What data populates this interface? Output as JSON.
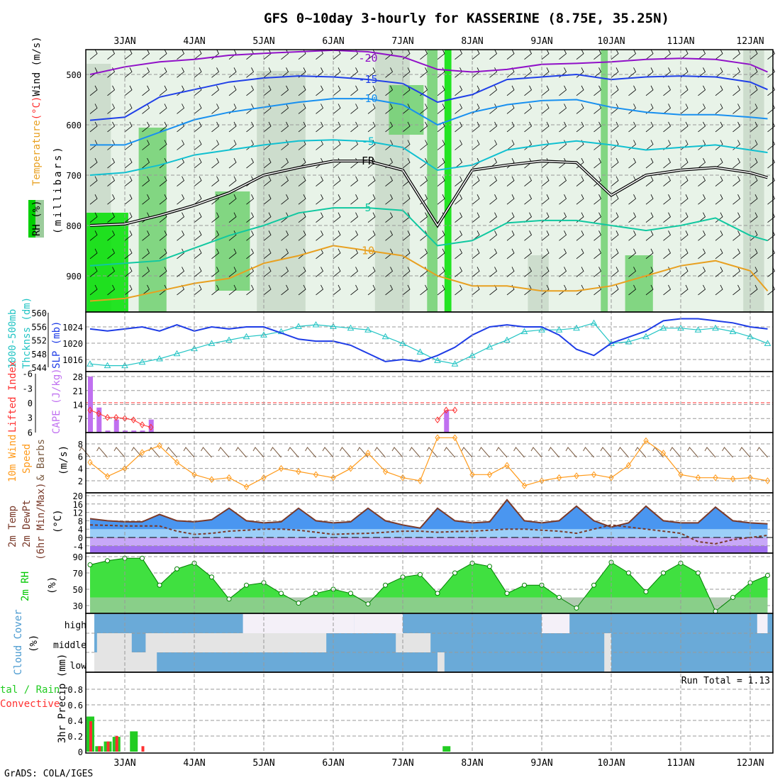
{
  "title": "GFS 0~10day 3-hourly for KASSERINE (8.75E, 35.25N)",
  "footer": "GrADS: COLA/IGES",
  "run_total": "Run Total = 1.13",
  "dates": [
    "3JAN",
    "4JAN",
    "5JAN",
    "6JAN",
    "7JAN",
    "8JAN",
    "9JAN",
    "10JAN",
    "11JAN",
    "12JAN"
  ],
  "colors": {
    "thickness": "#22c4c4",
    "slp": "#1e3ce6",
    "cape": "#c070f0",
    "li": "#ff3030",
    "wind": "#ff9a1a",
    "barb": "#7a5a40",
    "temp": "#7a3a2a",
    "rh": "#00c800",
    "cloud": "#6aaad8",
    "rain": "#22cc22",
    "conv": "#ff3030"
  },
  "labels": {
    "wind_ms": "Wind (m/s)",
    "deg_c": "(°C)",
    "temperature": "Temperature",
    "millibars": "(millibars)",
    "rh_pct": "RH (%)",
    "thickness": "1000-500mb",
    "thickness2": "Thcknss (dm)",
    "slp": "SLP (mb)",
    "lifted_index": "Lifted Index",
    "cape": "CAPE (J/kg)",
    "wind10": "10m Wind",
    "speed": "Speed",
    "barbs": "& Barbs",
    "ms": "(m/s)",
    "temp2m": "2m Temp",
    "dewpt2m": "2m DewPt",
    "minmax": "(6hr Min/Max)",
    "degc2": "(°C)",
    "rh2m": "2m RH",
    "pct": "(%)",
    "cloud_cover": "Cloud Cover",
    "cloud_pct": "(%)",
    "high": "high",
    "middle": "middle",
    "low": "low",
    "total_rain": "tal / Rain",
    "convective": "Convective",
    "precip": "3hr Precip (mm)"
  },
  "chart_data": [
    {
      "type": "contour",
      "title": "Temperature (°C), Wind (m/s), RH (%) vs pressure",
      "ylabel": "(millibars)",
      "yticks": [
        500,
        600,
        700,
        800,
        900
      ],
      "ylim": [
        950,
        450
      ],
      "x_days_from_3JAN": [
        -0.5,
        0,
        0.5,
        1,
        1.5,
        2,
        2.5,
        3,
        3.5,
        4,
        4.5,
        5,
        5.5,
        6,
        6.5,
        7,
        7.5,
        8,
        8.5,
        9,
        9.25
      ],
      "isotherms": [
        {
          "label": "-20",
          "color": "#9010c8",
          "p": [
            500,
            485,
            475,
            470,
            462,
            458,
            455,
            452,
            455,
            465,
            490,
            495,
            490,
            480,
            478,
            475,
            470,
            468,
            470,
            480,
            495
          ]
        },
        {
          "label": "-15",
          "color": "#2040e8",
          "p": [
            591,
            585,
            545,
            530,
            515,
            507,
            503,
            505,
            510,
            518,
            555,
            540,
            510,
            505,
            500,
            510,
            505,
            503,
            505,
            515,
            530
          ]
        },
        {
          "label": "-10",
          "color": "#1890f0",
          "p": [
            640,
            640,
            615,
            590,
            575,
            565,
            555,
            548,
            548,
            560,
            600,
            575,
            560,
            552,
            550,
            565,
            575,
            580,
            580,
            585,
            588
          ]
        },
        {
          "label": "-5",
          "color": "#10c0d0",
          "p": [
            700,
            695,
            680,
            660,
            650,
            640,
            632,
            630,
            633,
            645,
            690,
            680,
            650,
            640,
            632,
            640,
            650,
            645,
            640,
            650,
            655
          ]
        },
        {
          "label": "FR",
          "color": "#000000",
          "p": [
            800,
            797,
            780,
            760,
            735,
            700,
            685,
            672,
            672,
            690,
            800,
            690,
            680,
            672,
            675,
            740,
            700,
            690,
            685,
            695,
            705
          ]
        },
        {
          "label": "5",
          "color": "#10c8a0",
          "p": [
            880,
            875,
            870,
            845,
            820,
            800,
            775,
            765,
            765,
            770,
            840,
            830,
            795,
            790,
            790,
            800,
            810,
            800,
            785,
            820,
            830
          ]
        },
        {
          "label": "10",
          "color": "#e8a020",
          "p": [
            950,
            945,
            930,
            915,
            905,
            875,
            860,
            840,
            850,
            860,
            900,
            920,
            920,
            930,
            930,
            920,
            900,
            880,
            870,
            890,
            930
          ]
        }
      ]
    },
    {
      "type": "line",
      "x_days_from_3JAN_start": -0.5,
      "step_days": 0.25,
      "series": [
        {
          "name": "1000-500mb Thickness (dm)",
          "yticks": [
            544,
            548,
            552,
            556,
            560
          ],
          "values": [
            545,
            544.5,
            544.5,
            545.5,
            546.5,
            548,
            549.5,
            551,
            552,
            553,
            553.5,
            554.5,
            556,
            556.5,
            556,
            555.5,
            555,
            553,
            551,
            548.5,
            546,
            545,
            547.5,
            550,
            552,
            554.5,
            555,
            555,
            555.5,
            557,
            551,
            551.5,
            553,
            555.5,
            555.5,
            555,
            555.5,
            554.5,
            553,
            551
          ]
        },
        {
          "name": "SLP (mb)",
          "yticks": [
            1016,
            1020,
            1024
          ],
          "values": [
            1023.5,
            1023,
            1023.5,
            1024,
            1023,
            1024.5,
            1023,
            1024,
            1023.5,
            1024,
            1024,
            1022.5,
            1021,
            1020.5,
            1020.5,
            1019.5,
            1017.5,
            1015.5,
            1016,
            1015.5,
            1017,
            1019,
            1022,
            1024,
            1024.5,
            1024,
            1024,
            1022,
            1018.5,
            1017,
            1020,
            1021.5,
            1023,
            1025.5,
            1026,
            1026,
            1025.5,
            1025,
            1024,
            1023.5
          ]
        }
      ]
    },
    {
      "type": "bar",
      "cape_yticks": [
        7,
        14,
        21,
        28
      ],
      "li_yticks": [
        -6,
        -3,
        0,
        3,
        6
      ],
      "cape": [
        {
          "d": -0.5,
          "v": 28
        },
        {
          "d": -0.375,
          "v": 12.5
        },
        {
          "d": -0.25,
          "v": 1
        },
        {
          "d": -0.125,
          "v": 6.5
        },
        {
          "d": 0,
          "v": 1
        },
        {
          "d": 0.125,
          "v": 1
        },
        {
          "d": 0.25,
          "v": 1
        },
        {
          "d": 0.375,
          "v": 6.5
        },
        {
          "d": 4.625,
          "v": 11
        }
      ],
      "lifted_index": [
        {
          "d": -0.5,
          "v": 1.5
        },
        {
          "d": -0.375,
          "v": 2.2
        },
        {
          "d": -0.25,
          "v": 3
        },
        {
          "d": -0.125,
          "v": 3
        },
        {
          "d": 0,
          "v": 3.2
        },
        {
          "d": 0.125,
          "v": 3.5
        },
        {
          "d": 0.25,
          "v": 4.5
        },
        {
          "d": 0.375,
          "v": 5
        },
        {
          "d": 4.5,
          "v": 3.5
        },
        {
          "d": 4.625,
          "v": 1.5
        },
        {
          "d": 4.75,
          "v": 1.5
        }
      ]
    },
    {
      "type": "line",
      "name": "10m Wind Speed (m/s)",
      "yticks": [
        2,
        4,
        6,
        8
      ],
      "values": [
        5,
        2.7,
        4,
        6.6,
        7.7,
        5,
        3,
        2.2,
        2.5,
        1,
        2.5,
        4,
        3.5,
        3,
        2.5,
        4,
        6.5,
        3.5,
        2.5,
        2,
        9,
        9,
        3,
        3,
        4.5,
        1.2,
        2,
        2.5,
        2.8,
        3,
        2.5,
        4.5,
        8.5,
        6.5,
        3,
        2.5,
        2.5,
        2.3,
        2.5,
        2
      ]
    },
    {
      "type": "area",
      "yticks": [
        -4,
        0,
        4,
        8,
        12,
        16,
        20
      ],
      "temp": [
        9,
        8,
        7.5,
        7.5,
        11,
        8,
        7.5,
        8.5,
        14,
        8,
        7,
        7.5,
        14,
        8,
        7,
        7.5,
        14,
        8,
        6,
        4.5,
        14,
        8,
        7,
        7.5,
        18,
        8,
        7,
        8,
        15,
        8,
        5,
        7,
        15,
        8,
        7,
        7,
        14.5,
        8,
        7,
        6.5
      ],
      "dewpt": [
        6,
        5.8,
        5.5,
        5.5,
        5.5,
        3,
        1.5,
        2,
        3,
        3.5,
        4,
        4,
        3.5,
        2.5,
        1.5,
        1.8,
        2,
        2.5,
        3,
        3,
        2.5,
        2.8,
        3,
        3.5,
        4,
        4,
        3.5,
        3,
        2,
        4,
        6,
        5,
        4,
        3,
        2,
        -2,
        -3,
        -1,
        0,
        1
      ]
    },
    {
      "type": "area",
      "name": "2m RH (%)",
      "yticks": [
        30,
        50,
        70,
        90
      ],
      "values": [
        80,
        85,
        88,
        88,
        55,
        75,
        82,
        65,
        38,
        55,
        58,
        45,
        33,
        45,
        50,
        45,
        32,
        55,
        65,
        68,
        45,
        70,
        82,
        78,
        45,
        55,
        55,
        40,
        27,
        55,
        83,
        70,
        47,
        70,
        82,
        70,
        23,
        40,
        58,
        67
      ]
    },
    {
      "type": "heatmap",
      "name": "Cloud Cover",
      "clear_patches": [
        {
          "layer": "low",
          "from": -0.5,
          "to": 0.4
        },
        {
          "layer": "middle",
          "from": -0.4,
          "to": 0.1
        },
        {
          "layer": "middle",
          "from": 0.3,
          "to": 2.9
        },
        {
          "layer": "high",
          "from": 1.7,
          "to": 3.3
        },
        {
          "layer": "middle",
          "from": 3.9,
          "to": 4.4
        },
        {
          "layer": "low",
          "from": 4.5,
          "to": 4.6
        },
        {
          "layer": "high",
          "from": 3.3,
          "to": 4.0
        },
        {
          "layer": "high",
          "from": 6.0,
          "to": 6.4
        },
        {
          "layer": "middle",
          "from": 6.9,
          "to": 7.0
        },
        {
          "layer": "low",
          "from": 6.9,
          "to": 7.0
        },
        {
          "layer": "high",
          "from": 9.1,
          "to": 9.25
        }
      ]
    },
    {
      "type": "bar",
      "name": "3hr Precip (mm)",
      "yticks": [
        0,
        0.2,
        0.4,
        0.6,
        0.8
      ],
      "bars": [
        {
          "d": -0.5,
          "total": 0.45,
          "conv": 0.39
        },
        {
          "d": -0.375,
          "total": 0.07,
          "conv": 0.07
        },
        {
          "d": -0.25,
          "total": 0.13,
          "conv": 0.13
        },
        {
          "d": -0.125,
          "total": 0.19,
          "conv": 0.2
        },
        {
          "d": 0.125,
          "total": 0.26,
          "conv": 0
        },
        {
          "d": 0.25,
          "total": 0,
          "conv": 0.07
        },
        {
          "d": 4.625,
          "total": 0.07,
          "conv": 0
        }
      ]
    }
  ]
}
